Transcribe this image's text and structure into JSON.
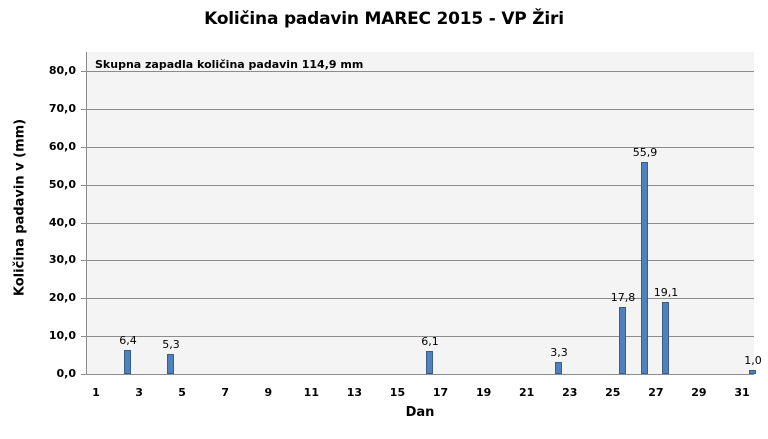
{
  "chart_data": {
    "type": "bar",
    "title": "Količina padavin  MAREC 2015 - VP Žiri",
    "annotation": "Skupna zapadla količina padavin 114,9 mm",
    "xlabel": "Dan",
    "ylabel": "Količina padavin v  (mm)",
    "ylim": [
      0,
      80
    ],
    "grid": true,
    "legend": "none",
    "x_tick_labels": [
      "1",
      "3",
      "5",
      "7",
      "9",
      "11",
      "13",
      "15",
      "17",
      "19",
      "21",
      "23",
      "25",
      "27",
      "29",
      "31"
    ],
    "y_tick_labels": [
      "0,0",
      "10,0",
      "20,0",
      "30,0",
      "40,0",
      "50,0",
      "60,0",
      "70,0",
      "80,0"
    ],
    "categories": [
      1,
      2,
      3,
      4,
      5,
      6,
      7,
      8,
      9,
      10,
      11,
      12,
      13,
      14,
      15,
      16,
      17,
      18,
      19,
      20,
      21,
      22,
      23,
      24,
      25,
      26,
      27,
      28,
      29,
      30,
      31
    ],
    "values": [
      0,
      6.4,
      0,
      5.3,
      0,
      0,
      0,
      0,
      0,
      0,
      0,
      0,
      0,
      0,
      0,
      6.1,
      0,
      0,
      0,
      0,
      0,
      3.3,
      0,
      0,
      17.8,
      55.9,
      19.1,
      0,
      0,
      0,
      1.0
    ],
    "data_labels": {
      "2": "6,4",
      "4": "5,3",
      "16": "6,1",
      "22": "3,3",
      "25": "17,8",
      "26": "55,9",
      "27": "19,1",
      "31": "1,0"
    },
    "colors": {
      "bar_fill": "#4f81bd",
      "bar_border": "#385d8a",
      "plot_bg": "#f4f4f4",
      "grid": "#8c8c8c"
    }
  }
}
